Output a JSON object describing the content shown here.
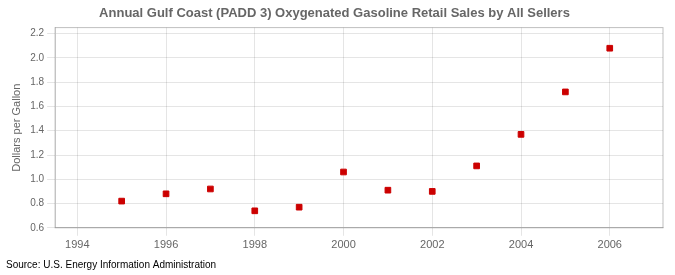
{
  "chart_data": {
    "type": "scatter",
    "title": "Annual Gulf Coast (PADD 3) Oxygenated Gasoline Retail Sales by All Sellers",
    "ylabel": "Dollars per Gallon",
    "annotation": "Source: U.S. Energy Information Administration",
    "x": [
      1995,
      1996,
      1997,
      1998,
      1999,
      2000,
      2001,
      2002,
      2003,
      2004,
      2005,
      2006
    ],
    "values": [
      0.82,
      0.88,
      0.92,
      0.74,
      0.77,
      1.06,
      0.91,
      0.9,
      1.11,
      1.37,
      1.72,
      2.08
    ],
    "color": "#cc0000",
    "marker": "square",
    "xlim": [
      1993.5,
      2007.2
    ],
    "ylim": [
      0.6,
      2.25
    ],
    "xticks": [
      1994,
      1996,
      1998,
      2000,
      2002,
      2004,
      2006
    ],
    "yticks": [
      0.6,
      0.8,
      {
        "value": 1.0,
        "label": "1.0"
      },
      1.2,
      1.4,
      1.6,
      1.8,
      {
        "value": 2.0,
        "label": "2.0"
      },
      2.2
    ],
    "grid": true
  }
}
